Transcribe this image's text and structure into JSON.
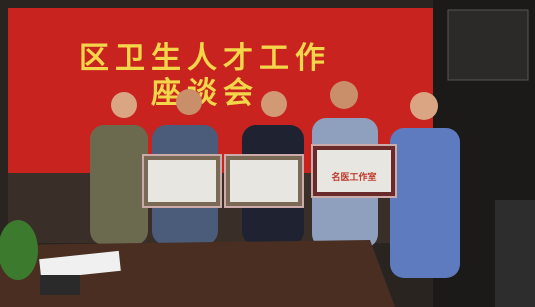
{
  "banner": {
    "line1": "区卫生人才工作",
    "line2": "座谈会"
  },
  "plaque": {
    "label": "名医工作室"
  }
}
